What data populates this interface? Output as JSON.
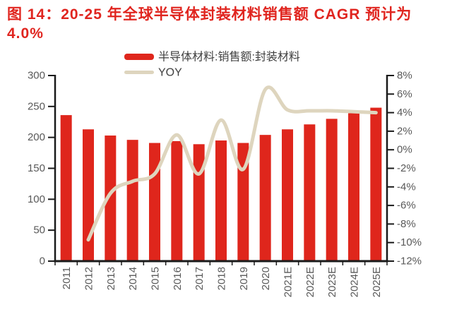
{
  "page": {
    "title_lines": [
      "图 14：20-25 年全球半导体封装材料销售额 CAGR 预计为",
      "4.0%"
    ]
  },
  "colors": {
    "title_red": "#E0251F",
    "bar_red": "#DF261C",
    "line_tan": "#DED5BE",
    "axis_text": "#595959",
    "legend_text": "#3F3F3F",
    "axis_line": "#1A1A1A"
  },
  "chart_data": {
    "type": "bar+line combo (dual axis)",
    "title": "图 14：20-25 年全球半导体封装材料销售额 CAGR 预计为 4.0%",
    "categories": [
      "2011",
      "2012",
      "2013",
      "2014",
      "2015",
      "2016",
      "2017",
      "2018",
      "2019",
      "2020",
      "2021E",
      "2022E",
      "2023E",
      "2024E",
      "2025E"
    ],
    "series": [
      {
        "name": "半导体材料:销售额:封装材料",
        "type": "bar",
        "axis": "left",
        "color": "#DF261C",
        "values": [
          236,
          213,
          203,
          196,
          191,
          194,
          189,
          195,
          191,
          204,
          213,
          221,
          230,
          239,
          248
        ]
      },
      {
        "name": "YOY",
        "type": "line",
        "axis": "right",
        "color": "#DED5BE",
        "values": [
          null,
          -9.7,
          -4.7,
          -3.4,
          -2.6,
          1.6,
          -2.6,
          3.2,
          -2.1,
          6.5,
          4.3,
          4.2,
          4.2,
          4.1,
          4.0
        ]
      }
    ],
    "left_axis": {
      "min": 0,
      "max": 300,
      "step": 50,
      "tick_labels": [
        "300",
        "250",
        "200",
        "150",
        "100",
        "50",
        "0"
      ]
    },
    "right_axis": {
      "min": -12,
      "max": 8,
      "step": 2,
      "tick_labels": [
        "8%",
        "6%",
        "4%",
        "2%",
        "0%",
        "-2%",
        "-4%",
        "-6%",
        "-8%",
        "-10%",
        "-12%"
      ]
    },
    "legend_position": "top",
    "grid": false
  }
}
